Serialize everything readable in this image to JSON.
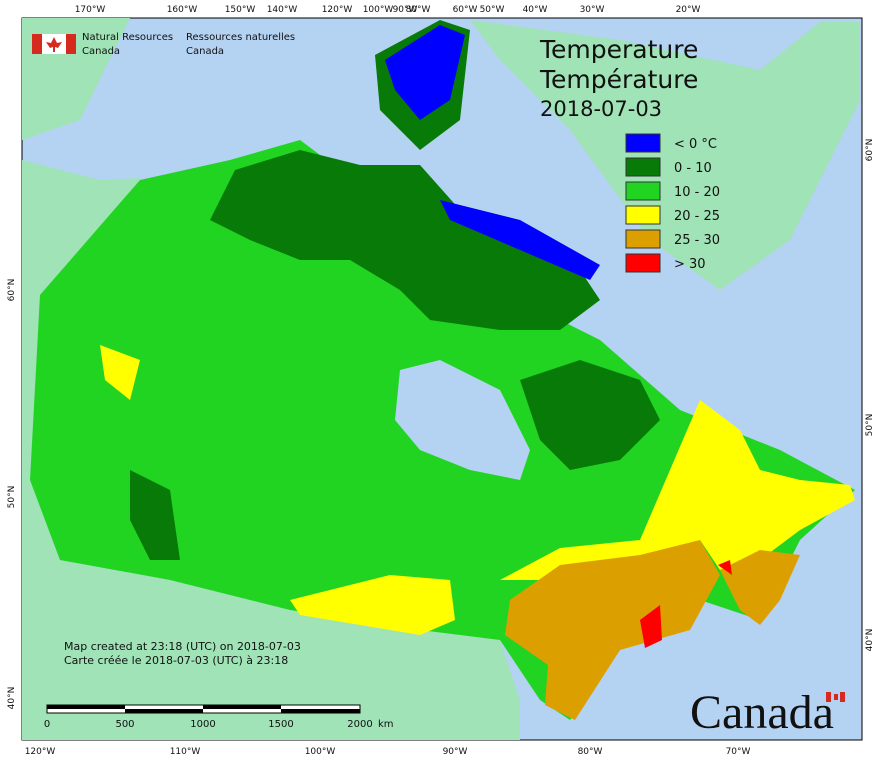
{
  "header": {
    "org_en": "Natural Resources",
    "org_en_2": "Canada",
    "org_fr": "Ressources naturelles",
    "org_fr_2": "Canada"
  },
  "title": {
    "en": "Temperature",
    "fr": "Température",
    "date": "2018-07-03"
  },
  "legend": [
    {
      "label": "< 0 °C",
      "color": "#0000ff"
    },
    {
      "label": "0 - 10",
      "color": "#087a08"
    },
    {
      "label": "10 - 20",
      "color": "#22d422"
    },
    {
      "label": "20 - 25",
      "color": "#ffff00"
    },
    {
      "label": "25 - 30",
      "color": "#dba000"
    },
    {
      "label": "> 30",
      "color": "#ff0000"
    }
  ],
  "notes": [
    "Map created at 23:18 (UTC) on 2018-07-03",
    "Carte créée le 2018-07-03 (UTC) à 23:18"
  ],
  "scale_bar": {
    "ticks": [
      "0",
      "500",
      "1000",
      "1500",
      "2000"
    ],
    "unit": "km"
  },
  "graticule": {
    "top": [
      "170°W",
      "160°W",
      "150°W",
      "140°W",
      "120°W",
      "100°W",
      "90°W",
      "80°W",
      "60°W",
      "50°W",
      "40°W",
      "30°W",
      "20°W"
    ],
    "bottom": [
      "120°W",
      "110°W",
      "100°W",
      "90°W",
      "80°W",
      "70°W"
    ],
    "left": [
      "60°N",
      "50°N",
      "40°N"
    ],
    "right": [
      "60°N",
      "50°N",
      "40°N"
    ]
  },
  "wordmark": "Canada"
}
